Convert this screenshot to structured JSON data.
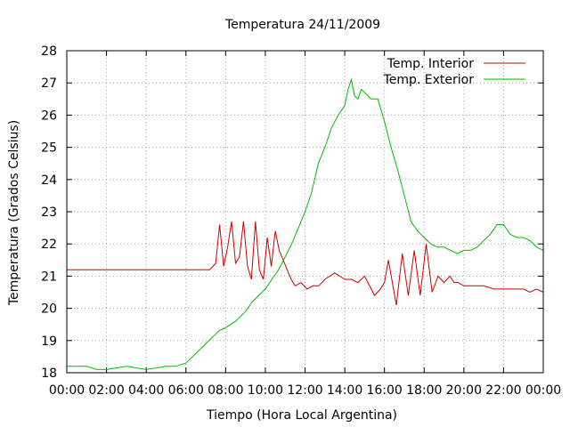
{
  "chart_data": {
    "type": "line",
    "title": "Temperatura 24/11/2009",
    "xlabel": "Tiempo (Hora Local Argentina)",
    "ylabel": "Temperatura (Grados Celsius)",
    "xlim": [
      "00:00",
      "24:00"
    ],
    "ylim": [
      18,
      28
    ],
    "x_ticks": [
      "00:00",
      "02:00",
      "04:00",
      "06:00",
      "08:00",
      "10:00",
      "12:00",
      "14:00",
      "16:00",
      "18:00",
      "20:00",
      "22:00",
      "00:00"
    ],
    "y_ticks": [
      "18",
      "19",
      "20",
      "21",
      "22",
      "23",
      "24",
      "25",
      "26",
      "27",
      "28"
    ],
    "grid": true,
    "legend_position": "top-right",
    "series": [
      {
        "name": "Temp. Interior",
        "color": "#cc0000",
        "x": [
          "00:00",
          "07:12",
          "07:30",
          "07:42",
          "07:54",
          "08:06",
          "08:18",
          "08:30",
          "08:42",
          "08:54",
          "09:06",
          "09:18",
          "09:30",
          "09:42",
          "09:54",
          "10:06",
          "10:18",
          "10:30",
          "10:42",
          "10:54",
          "11:06",
          "11:18",
          "11:30",
          "11:48",
          "12:06",
          "12:24",
          "12:42",
          "13:00",
          "13:30",
          "14:00",
          "14:20",
          "14:40",
          "15:00",
          "15:30",
          "15:48",
          "16:00",
          "16:12",
          "16:36",
          "16:54",
          "17:12",
          "17:30",
          "17:48",
          "18:06",
          "18:24",
          "18:42",
          "19:00",
          "19:18",
          "19:30",
          "19:42",
          "20:00",
          "20:30",
          "21:00",
          "21:30",
          "22:00",
          "23:00",
          "23:20",
          "23:40",
          "24:00"
        ],
        "y": [
          21.2,
          21.2,
          21.4,
          22.6,
          21.3,
          21.9,
          22.7,
          21.4,
          21.6,
          22.7,
          21.3,
          20.9,
          22.7,
          21.2,
          20.9,
          22.2,
          21.3,
          22.4,
          21.8,
          21.5,
          21.2,
          20.9,
          20.7,
          20.8,
          20.6,
          20.7,
          20.7,
          20.9,
          21.1,
          20.9,
          20.9,
          20.8,
          21.0,
          20.4,
          20.6,
          20.8,
          21.5,
          20.1,
          21.7,
          20.4,
          21.8,
          20.4,
          22.0,
          20.5,
          21.0,
          20.8,
          21.0,
          20.8,
          20.8,
          20.7,
          20.7,
          20.7,
          20.6,
          20.6,
          20.6,
          20.5,
          20.6,
          20.5
        ]
      },
      {
        "name": "Temp. Exterior",
        "color": "#00bb00",
        "x": [
          "00:00",
          "01:00",
          "01:30",
          "02:00",
          "03:00",
          "04:00",
          "04:30",
          "05:00",
          "05:30",
          "06:00",
          "06:30",
          "07:00",
          "07:20",
          "07:40",
          "08:00",
          "08:30",
          "09:00",
          "09:20",
          "09:40",
          "10:00",
          "10:20",
          "10:40",
          "11:00",
          "11:20",
          "11:40",
          "12:00",
          "12:20",
          "12:40",
          "13:00",
          "13:20",
          "13:40",
          "14:00",
          "14:10",
          "14:20",
          "14:30",
          "14:40",
          "14:50",
          "15:00",
          "15:20",
          "15:40",
          "16:00",
          "16:20",
          "16:40",
          "17:00",
          "17:20",
          "17:40",
          "18:00",
          "18:20",
          "18:40",
          "19:00",
          "19:20",
          "19:40",
          "20:00",
          "20:20",
          "20:40",
          "21:00",
          "21:20",
          "21:40",
          "22:00",
          "22:20",
          "22:40",
          "23:00",
          "23:20",
          "23:40",
          "24:00"
        ],
        "y": [
          18.2,
          18.2,
          18.1,
          18.1,
          18.2,
          18.1,
          18.15,
          18.2,
          18.2,
          18.3,
          18.6,
          18.9,
          19.1,
          19.3,
          19.4,
          19.6,
          19.9,
          20.2,
          20.4,
          20.6,
          20.9,
          21.2,
          21.6,
          22.0,
          22.5,
          23.0,
          23.6,
          24.5,
          25.0,
          25.6,
          26.0,
          26.3,
          26.8,
          27.1,
          26.6,
          26.5,
          26.8,
          26.7,
          26.5,
          26.5,
          25.8,
          25.0,
          24.3,
          23.5,
          22.7,
          22.4,
          22.2,
          22.0,
          21.9,
          21.9,
          21.8,
          21.7,
          21.8,
          21.8,
          21.9,
          22.1,
          22.3,
          22.6,
          22.6,
          22.3,
          22.2,
          22.2,
          22.1,
          21.9,
          21.8
        ]
      }
    ]
  }
}
